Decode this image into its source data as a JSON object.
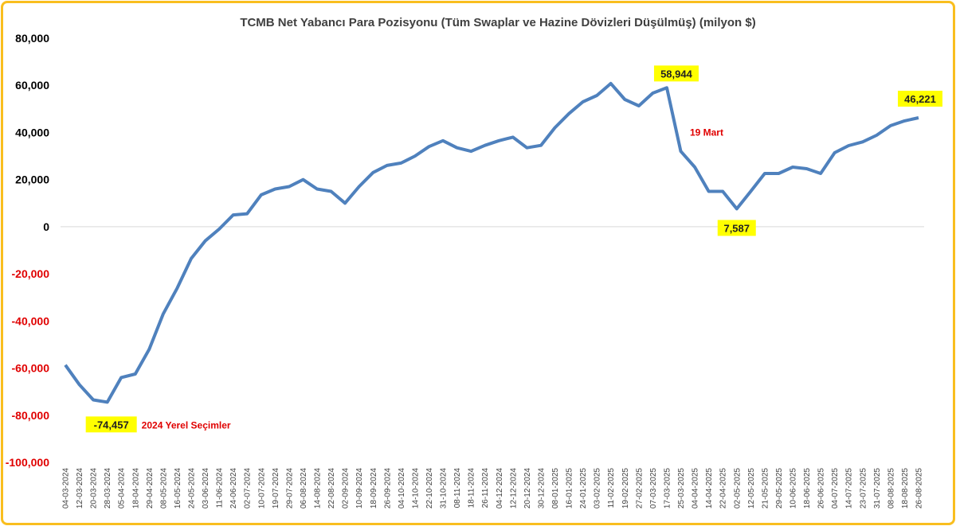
{
  "chart_data": {
    "type": "line",
    "title": "TCMB Net Yabancı Para Pozisyonu (Tüm Swaplar ve Hazine Dövizleri Düşülmüş) (milyon $)",
    "xlabel": "",
    "ylabel": "",
    "ylim": [
      -100000,
      80000
    ],
    "y_ticks": [
      80000,
      60000,
      40000,
      20000,
      0,
      -20000,
      -40000,
      -60000,
      -80000,
      -100000
    ],
    "y_tick_labels": [
      "80,000",
      "60,000",
      "40,000",
      "20,000",
      "0",
      "-20,000",
      "-40,000",
      "-60,000",
      "-80,000",
      "-100,000"
    ],
    "colors": {
      "line": "#4F81BD",
      "positive_tick": "#000000",
      "negative_tick": "#E00000",
      "highlight": "#FFFF00",
      "note": "#E00000",
      "border": "#F9BE1E"
    },
    "grid": "zero-line only",
    "legend": "none",
    "categories": [
      "04-03-2024",
      "12-03-2024",
      "20-03-2024",
      "28-03-2024",
      "05-04-2024",
      "18-04-2024",
      "29-04-2024",
      "08-05-2024",
      "16-05-2024",
      "24-05-2024",
      "03-06-2024",
      "11-06-2024",
      "24-06-2024",
      "02-07-2024",
      "10-07-2024",
      "19-07-2024",
      "29-07-2024",
      "06-08-2024",
      "14-08-2024",
      "22-08-2024",
      "02-09-2024",
      "10-09-2024",
      "18-09-2024",
      "26-09-2024",
      "04-10-2024",
      "14-10-2024",
      "22-10-2024",
      "31-10-2024",
      "08-11-2024",
      "18-11-2024",
      "26-11-2024",
      "04-12-2024",
      "12-12-2024",
      "20-12-2024",
      "30-12-2024",
      "08-01-2025",
      "16-01-2025",
      "24-01-2025",
      "03-02-2025",
      "11-02-2025",
      "19-02-2025",
      "27-02-2025",
      "07-03-2025",
      "17-03-2025",
      "25-03-2025",
      "04-04-2025",
      "14-04-2025",
      "22-04-2025",
      "02-05-2025",
      "12-05-2025",
      "21-05-2025",
      "29-05-2025",
      "10-06-2025",
      "18-06-2025",
      "26-06-2025",
      "04-07-2025",
      "14-07-2025",
      "23-07-2025",
      "31-07-2025",
      "08-08-2025",
      "18-08-2025",
      "26-08-2025"
    ],
    "series": [
      {
        "name": "Net Yabancı Para Pozisyonu",
        "values": [
          -58700,
          -67000,
          -73500,
          -74457,
          -64000,
          -62500,
          -52000,
          -37000,
          -26000,
          -13500,
          -6000,
          -1000,
          5000,
          5500,
          13500,
          16000,
          17000,
          20000,
          16000,
          15000,
          10000,
          17000,
          23000,
          26000,
          27000,
          30000,
          34000,
          36500,
          33500,
          32000,
          34500,
          36500,
          38000,
          33500,
          34500,
          42000,
          48000,
          53000,
          55700,
          60800,
          54000,
          51300,
          56700,
          58944,
          32000,
          25300,
          15000,
          15000,
          7587,
          15000,
          22600,
          22600,
          25300,
          24600,
          22600,
          31400,
          34400,
          36000,
          38800,
          42900,
          44900,
          46221
        ]
      }
    ],
    "annotations": [
      {
        "label": "-74,457",
        "index": 3,
        "note": "2024 Yerel Seçimler"
      },
      {
        "label": "58,944",
        "index": 43,
        "note": "19 Mart"
      },
      {
        "label": "7,587",
        "index": 48
      },
      {
        "label": "46,221",
        "index": 61
      }
    ]
  }
}
